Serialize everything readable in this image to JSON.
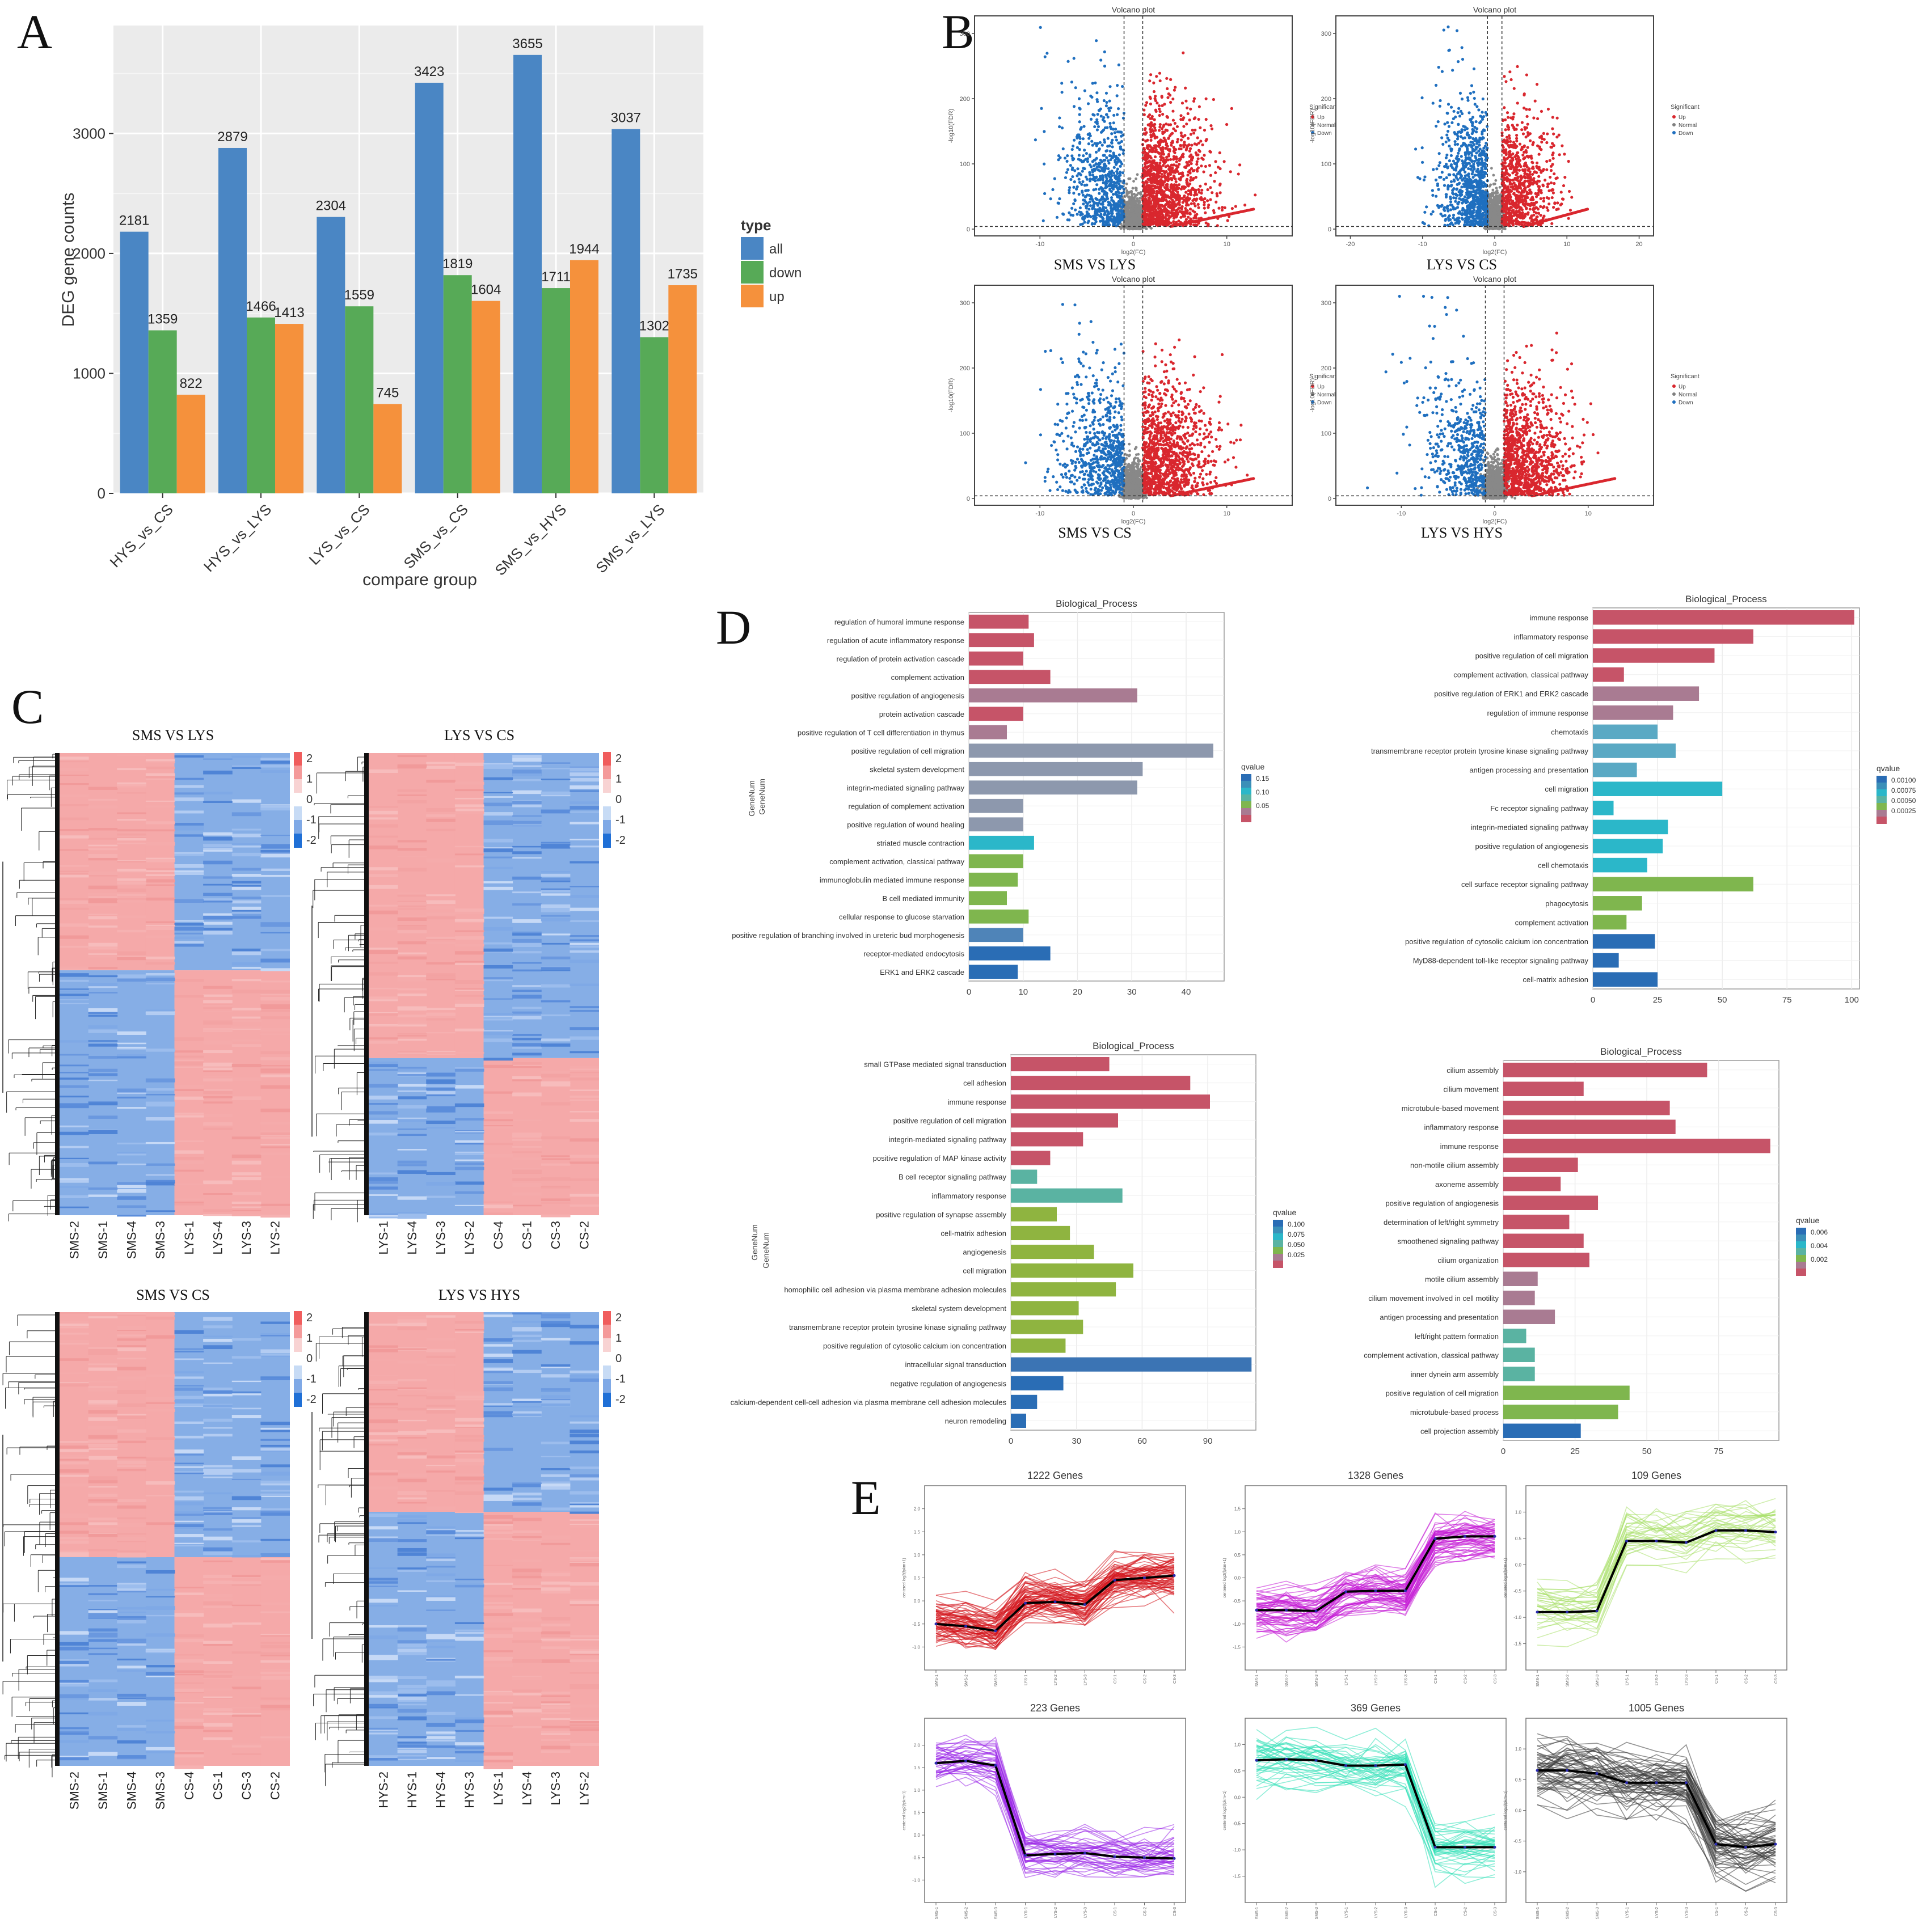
{
  "panel_letters": {
    "A": "A",
    "B": "B",
    "C": "C",
    "D": "D",
    "E": "E"
  },
  "colors": {
    "all": "#4a86c4",
    "down": "#57aa57",
    "up": "#f5913c",
    "red": "#d9272e",
    "blue": "#1f6fbf",
    "grey": "#7f7f7f",
    "heat_red": "#f4a6a6",
    "heat_blue": "#6f9fe0",
    "grid": "#ebebeb",
    "panel_bg": "#ffffff"
  },
  "chart_data": [
    {
      "id": "A",
      "type": "bar",
      "categories": [
        "HYS_vs_CS",
        "HYS_vs_LYS",
        "LYS_vs_CS",
        "SMS_vs_CS",
        "SMS_vs_HYS",
        "SMS_vs_LYS"
      ],
      "series": [
        {
          "name": "all",
          "values": [
            2181,
            2879,
            2304,
            3423,
            3655,
            3037
          ]
        },
        {
          "name": "down",
          "values": [
            1359,
            1466,
            1559,
            1819,
            1711,
            1302
          ]
        },
        {
          "name": "up",
          "values": [
            822,
            1413,
            745,
            1604,
            1944,
            1735
          ]
        }
      ],
      "title": "",
      "xlabel": "compare group",
      "ylabel": "DEG gene counts",
      "yticks": [
        0,
        1000,
        2000,
        3000
      ],
      "ylim": [
        0,
        3900
      ],
      "legend_title": "type",
      "legend": [
        "all",
        "down",
        "up"
      ]
    },
    {
      "id": "B",
      "type": "scatter",
      "plots": [
        {
          "title": "Volcano plot",
          "caption": "SMS VS LYS",
          "xlabel": "log2(FC)",
          "ylabel": "-log10(FDR)",
          "xticks": [
            -10,
            0,
            10
          ],
          "yticks": [
            0,
            100,
            200,
            300
          ]
        },
        {
          "title": "Volcano plot",
          "caption": "LYS VS CS",
          "xlabel": "log2(FC)",
          "ylabel": "-log10(FDR)",
          "xticks": [
            -20,
            -10,
            0,
            10,
            20
          ],
          "yticks": [
            0,
            100,
            200,
            300
          ]
        },
        {
          "title": "Volcano plot",
          "caption": "SMS VS CS",
          "xlabel": "log2(FC)",
          "ylabel": "-log10(FDR)",
          "xticks": [
            -10,
            0,
            10
          ],
          "yticks": [
            0,
            100,
            200,
            300
          ]
        },
        {
          "title": "Volcano plot",
          "caption": "LYS VS HYS",
          "xlabel": "log2(FC)",
          "ylabel": "-log10(FDR)",
          "xticks": [
            -10,
            0,
            10
          ],
          "yticks": [
            0,
            100,
            200,
            300
          ]
        }
      ],
      "legend_title": "Significant",
      "legend": [
        "Up",
        "Normal",
        "Down"
      ]
    },
    {
      "id": "C",
      "type": "heatmap",
      "scale_ticks": [
        "2",
        "1",
        "0",
        "-1",
        "-2"
      ],
      "maps": [
        {
          "title": "SMS VS LYS",
          "columns": [
            "SMS-2",
            "SMS-1",
            "SMS-4",
            "SMS-3",
            "LYS-1",
            "LYS-4",
            "LYS-3",
            "LYS-2"
          ],
          "split": 0.47,
          "top_left": "red"
        },
        {
          "title": "LYS VS CS",
          "columns": [
            "LYS-1",
            "LYS-4",
            "LYS-3",
            "LYS-2",
            "CS-4",
            "CS-1",
            "CS-3",
            "CS-2"
          ],
          "split": 0.66,
          "top_left": "red"
        },
        {
          "title": "SMS VS CS",
          "columns": [
            "SMS-2",
            "SMS-1",
            "SMS-4",
            "SMS-3",
            "CS-4",
            "CS-1",
            "CS-3",
            "CS-2"
          ],
          "split": 0.54,
          "top_left": "red"
        },
        {
          "title": "LYS VS HYS",
          "columns": [
            "HYS-2",
            "HYS-1",
            "HYS-4",
            "HYS-3",
            "LYS-1",
            "LYS-4",
            "LYS-3",
            "LYS-2"
          ],
          "split": 0.44,
          "top_left": "red"
        }
      ]
    },
    {
      "id": "D",
      "type": "bar",
      "orientation": "horizontal",
      "ylabel": "GeneNum",
      "plots": [
        {
          "title": "Biological_Process",
          "xmax": 47,
          "xticks": [
            0,
            10,
            20,
            30,
            40
          ],
          "legend_title": "qvalue",
          "legend_ticks": [
            "0.15",
            "0.10",
            "0.05"
          ],
          "terms": [
            "regulation of humoral immune response",
            "regulation of acute inflammatory response",
            "regulation of protein activation cascade",
            "complement activation",
            "positive regulation of angiogenesis",
            "protein activation cascade",
            "positive regulation of T cell differentiation in thymus",
            "positive regulation of cell migration",
            "skeletal system development",
            "integrin-mediated signaling pathway",
            "regulation of complement activation",
            "positive regulation of wound healing",
            "striated muscle contraction",
            "complement activation, classical pathway",
            "immunoglobulin mediated immune response",
            "B cell mediated immunity",
            "cellular response to glucose starvation",
            "positive regulation of branching involved in ureteric bud morphogenesis",
            "receptor-mediated endocytosis",
            "ERK1 and ERK2 cascade"
          ],
          "values": [
            11,
            12,
            10,
            15,
            31,
            10,
            7,
            45,
            32,
            31,
            10,
            10,
            12,
            10,
            9,
            7,
            11,
            10,
            15,
            9
          ],
          "qvalues": [
            0.005,
            0.005,
            0.006,
            0.006,
            0.01,
            0.008,
            0.02,
            0.07,
            0.08,
            0.08,
            0.08,
            0.08,
            0.1,
            0.12,
            0.12,
            0.12,
            0.12,
            0.15,
            0.17,
            0.18
          ]
        },
        {
          "title": "Biological_Process",
          "xmax": 103,
          "xticks": [
            0,
            25,
            50,
            75,
            100
          ],
          "legend_title": "qvalue",
          "legend_ticks": [
            "0.00100",
            "0.00075",
            "0.00050",
            "0.00025"
          ],
          "terms": [
            "immune response",
            "inflammatory response",
            "positive regulation of cell migration",
            "complement activation, classical pathway",
            "positive regulation of ERK1 and ERK2 cascade",
            "regulation of immune response",
            "chemotaxis",
            "transmembrane receptor protein tyrosine kinase signaling pathway",
            "antigen processing and presentation",
            "cell migration",
            "Fc receptor signaling pathway",
            "integrin-mediated signaling pathway",
            "positive regulation of angiogenesis",
            "cell chemotaxis",
            "cell surface receptor signaling pathway",
            "phagocytosis",
            "complement activation",
            "positive regulation of cytosolic calcium ion concentration",
            "MyD88-dependent toll-like receptor signaling pathway",
            "cell-matrix adhesion"
          ],
          "values": [
            101,
            62,
            47,
            12,
            41,
            31,
            25,
            32,
            17,
            50,
            8,
            29,
            27,
            21,
            62,
            19,
            13,
            24,
            10,
            25
          ],
          "qvalues": [
            1e-05,
            1e-05,
            2e-05,
            3e-05,
            6e-05,
            7e-05,
            0.0002,
            0.0003,
            0.0003,
            0.0004,
            0.0004,
            0.0004,
            0.0004,
            0.0005,
            0.0007,
            0.0007,
            0.0008,
            0.001,
            0.0011,
            0.0012
          ]
        },
        {
          "title": "Biological_Process",
          "xmax": 112,
          "xticks": [
            0,
            30,
            60,
            90
          ],
          "legend_title": "qvalue",
          "legend_ticks": [
            "0.100",
            "0.075",
            "0.050",
            "0.025"
          ],
          "terms": [
            "small GTPase mediated signal transduction",
            "cell adhesion",
            "immune response",
            "positive regulation of cell migration",
            "integrin-mediated signaling pathway",
            "positive regulation of MAP kinase activity",
            "B cell receptor signaling pathway",
            "inflammatory response",
            "positive regulation of synapse assembly",
            "cell-matrix adhesion",
            "angiogenesis",
            "cell migration",
            "homophilic cell adhesion via plasma membrane adhesion molecules",
            "skeletal system development",
            "transmembrane receptor protein tyrosine kinase signaling pathway",
            "positive regulation of cytosolic calcium ion concentration",
            "intracellular signal transduction",
            "negative regulation of angiogenesis",
            "calcium-dependent cell-cell adhesion via plasma membrane cell adhesion molecules",
            "neuron remodeling"
          ],
          "values": [
            45,
            82,
            91,
            49,
            33,
            18,
            12,
            51,
            21,
            27,
            38,
            56,
            48,
            31,
            33,
            25,
            110,
            24,
            12,
            7
          ],
          "qvalues": [
            0.002,
            0.003,
            0.004,
            0.005,
            0.006,
            0.008,
            0.01,
            0.04,
            0.06,
            0.06,
            0.07,
            0.07,
            0.07,
            0.07,
            0.07,
            0.07,
            0.1,
            0.11,
            0.11,
            0.12
          ]
        },
        {
          "title": "Biological_Process",
          "xmax": 96,
          "xticks": [
            0,
            25,
            50,
            75
          ],
          "legend_title": "qvalue",
          "legend_ticks": [
            "0.006",
            "0.004",
            "0.002"
          ],
          "terms": [
            "cilium assembly",
            "cilium movement",
            "microtubule-based movement",
            "inflammatory response",
            "immune response",
            "non-motile cilium assembly",
            "axoneme assembly",
            "positive regulation of angiogenesis",
            "determination of left/right symmetry",
            "smoothened signaling pathway",
            "cilium organization",
            "motile cilium assembly",
            "cilium movement involved in cell motility",
            "antigen processing and presentation",
            "left/right pattern formation",
            "complement activation, classical pathway",
            "inner dynein arm assembly",
            "positive regulation of cell migration",
            "microtubule-based process",
            "cell projection assembly"
          ],
          "values": [
            71,
            28,
            58,
            60,
            93,
            26,
            20,
            33,
            23,
            28,
            30,
            12,
            11,
            18,
            8,
            11,
            11,
            44,
            40,
            27
          ],
          "qvalues": [
            0.0001,
            0.0001,
            0.0001,
            0.0001,
            0.0002,
            0.0003,
            0.0003,
            0.0004,
            0.0005,
            0.0005,
            0.0005,
            0.002,
            0.002,
            0.002,
            0.003,
            0.004,
            0.004,
            0.005,
            0.006,
            0.007
          ]
        }
      ]
    },
    {
      "id": "E",
      "type": "line",
      "x_ticks": [
        "SMS-1",
        "SMS-2",
        "SMS-3",
        "LYS-1",
        "LYS-2",
        "LYS-3",
        "CS-1",
        "CS-2",
        "CS-3"
      ],
      "ylabel": "centered log2(fpkm+1)",
      "clusters": [
        {
          "title": "1222 Genes",
          "color": "#d4141c",
          "mean": [
            -0.5,
            -0.55,
            -0.65,
            -0.05,
            -0.02,
            -0.08,
            0.45,
            0.5,
            0.55
          ],
          "ylim": [
            -1.5,
            2.5
          ],
          "yticks": [
            "-1.0",
            "-0.5",
            "0.0",
            "0.5",
            "1.0",
            "1.5",
            "2.0"
          ]
        },
        {
          "title": "1328 Genes",
          "color": "#c51bd6",
          "mean": [
            -0.7,
            -0.7,
            -0.72,
            -0.3,
            -0.28,
            -0.28,
            0.85,
            0.9,
            0.9
          ],
          "ylim": [
            -2,
            2
          ],
          "yticks": [
            "-1.5",
            "-1.0",
            "-0.5",
            "0.0",
            "0.5",
            "1.0",
            "1.5"
          ]
        },
        {
          "title": "109 Genes",
          "color": "#a9e06c",
          "mean": [
            -0.9,
            -0.9,
            -0.88,
            0.45,
            0.45,
            0.42,
            0.65,
            0.65,
            0.62
          ],
          "ylim": [
            -2,
            1.5
          ],
          "yticks": [
            "-1.5",
            "-1.0",
            "-0.5",
            "0.0",
            "0.5",
            "1.0"
          ]
        },
        {
          "title": "223 Genes",
          "color": "#9a28e8",
          "mean": [
            1.6,
            1.65,
            1.55,
            -0.45,
            -0.42,
            -0.4,
            -0.48,
            -0.5,
            -0.52
          ],
          "ylim": [
            -1.5,
            2.6
          ],
          "yticks": [
            "-1.0",
            "-0.5",
            "0.0",
            "0.5",
            "1.0",
            "1.5",
            "2.0"
          ]
        },
        {
          "title": "369 Genes",
          "color": "#35e0b8",
          "mean": [
            0.7,
            0.72,
            0.7,
            0.6,
            0.6,
            0.62,
            -0.95,
            -0.95,
            -0.95
          ],
          "ylim": [
            -2,
            1.5
          ],
          "yticks": [
            "-1.5",
            "-1.0",
            "-0.5",
            "0.0",
            "0.5",
            "1.0"
          ]
        },
        {
          "title": "1005 Genes",
          "color": "#3d3d3d",
          "mean": [
            0.65,
            0.65,
            0.6,
            0.45,
            0.45,
            0.45,
            -0.55,
            -0.6,
            -0.55
          ],
          "ylim": [
            -1.5,
            1.5
          ],
          "yticks": [
            "-1.0",
            "-0.5",
            "0.0",
            "0.5",
            "1.0"
          ]
        }
      ]
    }
  ]
}
